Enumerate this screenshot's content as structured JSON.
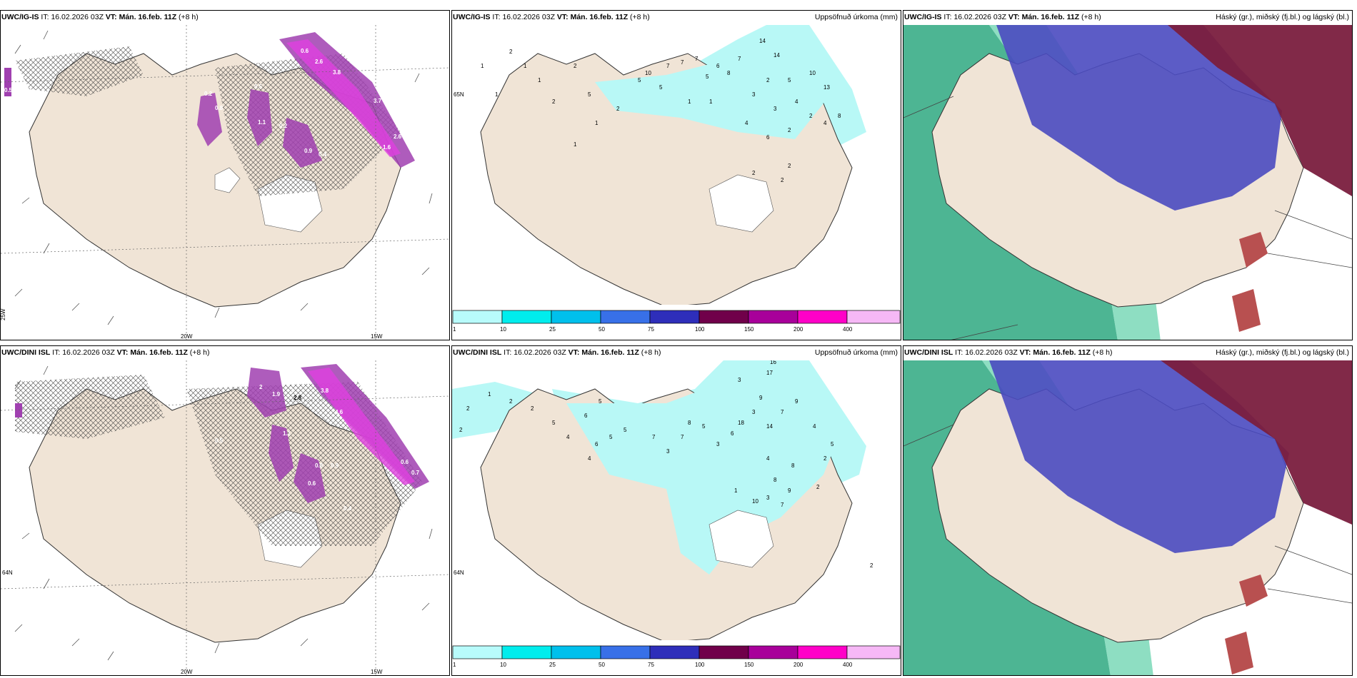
{
  "panels": [
    {
      "model": "UWC/IG-IS",
      "it_label": "IT:",
      "it": "16.02.2026 03Z",
      "vt_label": "VT:",
      "vt": "Mán. 16.feb. 11Z",
      "lead": "(+8 h)",
      "right_title": ""
    },
    {
      "model": "UWC/IG-IS",
      "it_label": "IT:",
      "it": "16.02.2026 03Z",
      "vt_label": "VT:",
      "vt": "Mán. 16.feb. 11Z",
      "lead": "(+8 h)",
      "right_title": "Uppsöfnuð úrkoma (mm)"
    },
    {
      "model": "UWC/IG-IS",
      "it_label": "IT:",
      "it": "16.02.2026 03Z",
      "vt_label": "VT:",
      "vt": "Mán. 16.feb. 11Z",
      "lead": "(+8 h)",
      "right_title": "Háský (gr.), miðský (fj.bl.) og lágský (bl.)"
    },
    {
      "model": "UWC/DINI ISL",
      "it_label": "IT:",
      "it": "16.02.2026 03Z",
      "vt_label": "VT:",
      "vt": "Mán. 16.feb. 11Z",
      "lead": "(+8 h)",
      "right_title": ""
    },
    {
      "model": "UWC/DINI ISL",
      "it_label": "IT:",
      "it": "16.02.2026 03Z",
      "vt_label": "VT:",
      "vt": "Mán. 16.feb. 11Z",
      "lead": "(+8 h)",
      "right_title": "Uppsöfnuð úrkoma (mm)"
    },
    {
      "model": "UWC/DINI ISL",
      "it_label": "IT:",
      "it": "16.02.2026 03Z",
      "vt_label": "VT:",
      "vt": "Mán. 16.feb. 11Z",
      "lead": "(+8 h)",
      "right_title": "Háský (gr.), miðský (fj.bl.) og lágský (bl.)"
    }
  ],
  "grid_labels": {
    "lon_20": "20W",
    "lon_15": "15W",
    "lon_25": "25W",
    "lat_65": "65N",
    "lat_64": "64N"
  },
  "colorbar": {
    "ticks": [
      "1",
      "10",
      "25",
      "50",
      "75",
      "100",
      "150",
      "200",
      "400"
    ],
    "colors": [
      "#b8fbfb",
      "#00eded",
      "#00c0ec",
      "#3870e8",
      "#2e2eba",
      "#70004a",
      "#a8009a",
      "#ff00c8",
      "#f6b8f6"
    ]
  },
  "precip_labels_top": [
    "1",
    "2",
    "1",
    "2",
    "5",
    "2",
    "5",
    "1",
    "1",
    "5",
    "10",
    "7",
    "7",
    "7",
    "5",
    "6",
    "8",
    "7",
    "14",
    "14",
    "13",
    "10",
    "4",
    "2",
    "5",
    "3",
    "3",
    "4",
    "2",
    "2",
    "6",
    "4",
    "8",
    "2",
    "1",
    "1",
    "2",
    "1",
    "1",
    "2",
    "2"
  ],
  "precip_labels_bottom": [
    "2",
    "1",
    "2",
    "2",
    "2",
    "5",
    "4",
    "6",
    "5",
    "4",
    "6",
    "5",
    "5",
    "7",
    "3",
    "7",
    "8",
    "5",
    "3",
    "6",
    "18",
    "3",
    "9",
    "14",
    "7",
    "9",
    "8",
    "4",
    "2",
    "1",
    "10",
    "3",
    "7",
    "9",
    "2",
    "4",
    "8",
    "5",
    "17",
    "16",
    "3",
    "2"
  ],
  "pressure_labels_top": [
    "0.5",
    "0.8",
    "0.5",
    "3.7",
    "1.6",
    "0.4",
    "0.5",
    "1.1",
    "0.2",
    "0.6",
    "0.9",
    "3.8",
    "2.6",
    "2.6",
    "1.7",
    "0.2"
  ],
  "pressure_labels_bottom": [
    "2",
    "1.9",
    "2",
    "2.8",
    "3.8",
    "4.6",
    "3.7",
    "3.1",
    "0.5",
    "0.8",
    "0.6",
    "0.9",
    "0.6",
    "0.4",
    "0.7",
    "1.1"
  ],
  "colors": {
    "land": "#f0e4d6",
    "precip_light": "#b8f8f6",
    "ice": "#ffffff",
    "purple": "#a040b0",
    "magenta": "#e040e0",
    "cloud_low": "#4a4ac0",
    "cloud_high": "#7a1d3e",
    "cloud_mid": "#2ea880"
  }
}
